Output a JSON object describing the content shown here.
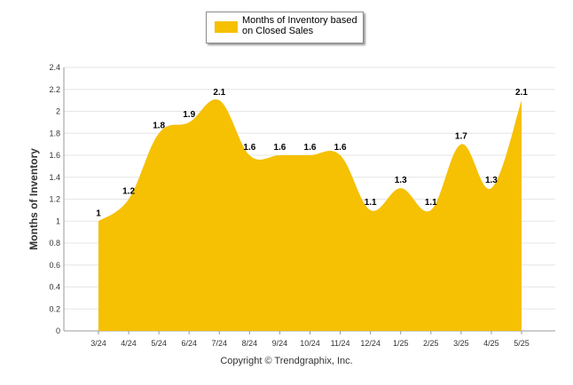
{
  "legend": {
    "label": "Months of Inventory based on Closed Sales"
  },
  "footer": {
    "text": "Copyright © Trendgraphix, Inc."
  },
  "colors": {
    "area_fill": "#f6c003",
    "gridline": "#e6e6e6",
    "axis": "#999999"
  },
  "chart_data": {
    "type": "area",
    "categories": [
      "3/24",
      "4/24",
      "5/24",
      "6/24",
      "7/24",
      "8/24",
      "9/24",
      "10/24",
      "11/24",
      "12/24",
      "1/25",
      "2/25",
      "3/25",
      "4/25",
      "5/25"
    ],
    "series": [
      {
        "name": "Months of Inventory based on Closed Sales",
        "values": [
          1,
          1.2,
          1.8,
          1.9,
          2.1,
          1.6,
          1.6,
          1.6,
          1.6,
          1.1,
          1.3,
          1.1,
          1.7,
          1.3,
          2.1
        ]
      }
    ],
    "data_labels": [
      "1",
      "1.2",
      "1.8",
      "1.9",
      "2.1",
      "1.6",
      "1.6",
      "1.6",
      "1.6",
      "1.1",
      "1.3",
      "1.1",
      "1.7",
      "1.3",
      "2.1"
    ],
    "yticks": [
      "0",
      "0.2",
      "0.4",
      "0.6",
      "0.8",
      "1",
      "1.2",
      "1.4",
      "1.6",
      "1.8",
      "2",
      "2.2",
      "2.4"
    ],
    "ylim": [
      0,
      2.4
    ],
    "xlabel": "",
    "ylabel": "Months of Inventory",
    "grid": true,
    "legend_position": "top-center",
    "curve": "smooth"
  }
}
